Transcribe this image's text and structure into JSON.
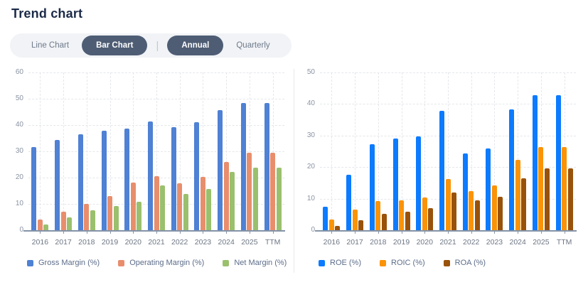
{
  "page": {
    "title": "Trend chart",
    "background": "#ffffff"
  },
  "toolbar": {
    "container_bg": "#f1f3f6",
    "active_bg": "#4e5d74",
    "active_text": "#ffffff",
    "inactive_text": "#6e7a8a",
    "divider": "|",
    "chart_type_options": [
      {
        "label": "Line Chart",
        "active": false
      },
      {
        "label": "Bar Chart",
        "active": true
      }
    ],
    "period_options": [
      {
        "label": "Annual",
        "active": true
      },
      {
        "label": "Quarterly",
        "active": false
      }
    ]
  },
  "chart_data": [
    {
      "type": "bar",
      "name": "margins-chart",
      "categories": [
        "2016",
        "2017",
        "2018",
        "2019",
        "2020",
        "2021",
        "2022",
        "2023",
        "2024",
        "2025",
        "TTM"
      ],
      "series": [
        {
          "name": "Gross Margin (%)",
          "color": "#4f81d4",
          "values": [
            31.5,
            34.4,
            36.5,
            37.9,
            38.7,
            41.4,
            39.1,
            41.1,
            45.7,
            48.4,
            48.3
          ]
        },
        {
          "name": "Operating Margin (%)",
          "color": "#e88e6d",
          "values": [
            4.1,
            7.0,
            10.0,
            12.9,
            18.0,
            20.5,
            17.8,
            20.3,
            25.9,
            29.4,
            29.4
          ]
        },
        {
          "name": "Net Margin (%)",
          "color": "#9ac06d",
          "values": [
            2.1,
            4.9,
            7.6,
            9.3,
            10.8,
            17.1,
            13.9,
            15.8,
            22.1,
            23.9,
            23.8
          ]
        }
      ],
      "ylim": [
        0,
        60
      ],
      "yticks": [
        0,
        10,
        20,
        30,
        40,
        50,
        60
      ],
      "grid": true,
      "legend_position": "bottom"
    },
    {
      "type": "bar",
      "name": "returns-chart",
      "categories": [
        "2016",
        "2017",
        "2018",
        "2019",
        "2020",
        "2021",
        "2022",
        "2023",
        "2024",
        "2025",
        "TTM"
      ],
      "series": [
        {
          "name": "ROE (%)",
          "color": "#0c7bff",
          "values": [
            7.4,
            17.5,
            27.2,
            29.0,
            29.8,
            37.8,
            24.4,
            25.9,
            38.4,
            42.7,
            42.7
          ]
        },
        {
          "name": "ROIC (%)",
          "color": "#fb9307",
          "values": [
            3.4,
            6.6,
            9.3,
            9.5,
            10.3,
            16.3,
            12.5,
            14.2,
            22.3,
            26.4,
            26.4
          ]
        },
        {
          "name": "ROA (%)",
          "color": "#99520a",
          "values": [
            1.3,
            3.2,
            5.1,
            5.9,
            7.0,
            11.9,
            9.4,
            10.7,
            16.4,
            19.6,
            19.5
          ]
        }
      ],
      "ylim": [
        0,
        50
      ],
      "yticks": [
        0,
        10,
        20,
        30,
        40,
        50
      ],
      "grid": true,
      "legend_position": "bottom"
    }
  ]
}
